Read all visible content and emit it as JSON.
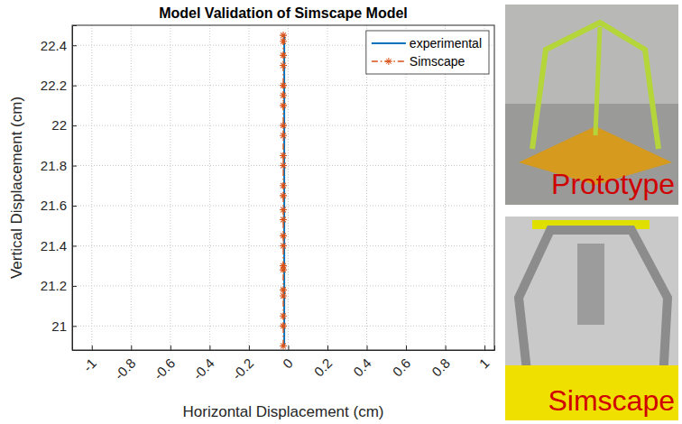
{
  "chart_data": {
    "type": "line",
    "title": "Model Validation of Simscape Model",
    "x_label": "Horizontal Displacement (cm)",
    "y_label": "Vertical Displacement (cm)",
    "annotations": [
      "Prototype",
      "Simscape"
    ],
    "xlim": [
      -1.1,
      1.05
    ],
    "ylim": [
      20.88,
      22.5
    ],
    "xticks": [
      -1,
      -0.8,
      -0.6,
      -0.4,
      -0.2,
      0,
      0.2,
      0.4,
      0.6,
      0.8,
      1
    ],
    "yticks": [
      21,
      21.2,
      21.4,
      21.6,
      21.8,
      22,
      22.2,
      22.4
    ],
    "grid": true,
    "legend": "top-right",
    "series": [
      {
        "name": "experimental",
        "color": "#0072bd",
        "line_style": "solid",
        "marker": "none",
        "x": [
          -0.02,
          -0.02
        ],
        "values": [
          20.9,
          22.45
        ]
      },
      {
        "name": "Simscape",
        "color": "#d95319",
        "line_style": "dashdot",
        "marker": "asterisk",
        "x": [
          -0.025,
          -0.025,
          -0.025,
          -0.025,
          -0.025,
          -0.025,
          -0.025,
          -0.025,
          -0.025,
          -0.025,
          -0.025,
          -0.025,
          -0.025,
          -0.025,
          -0.025,
          -0.025,
          -0.025,
          -0.025,
          -0.025,
          -0.025,
          -0.025,
          -0.025,
          -0.025,
          -0.025
        ],
        "values": [
          20.9,
          21.0,
          21.05,
          21.15,
          21.18,
          21.28,
          21.3,
          21.4,
          21.45,
          21.53,
          21.58,
          21.65,
          21.7,
          21.8,
          21.85,
          21.95,
          22.0,
          22.1,
          22.15,
          22.2,
          22.3,
          22.35,
          22.42,
          22.45
        ]
      }
    ]
  }
}
